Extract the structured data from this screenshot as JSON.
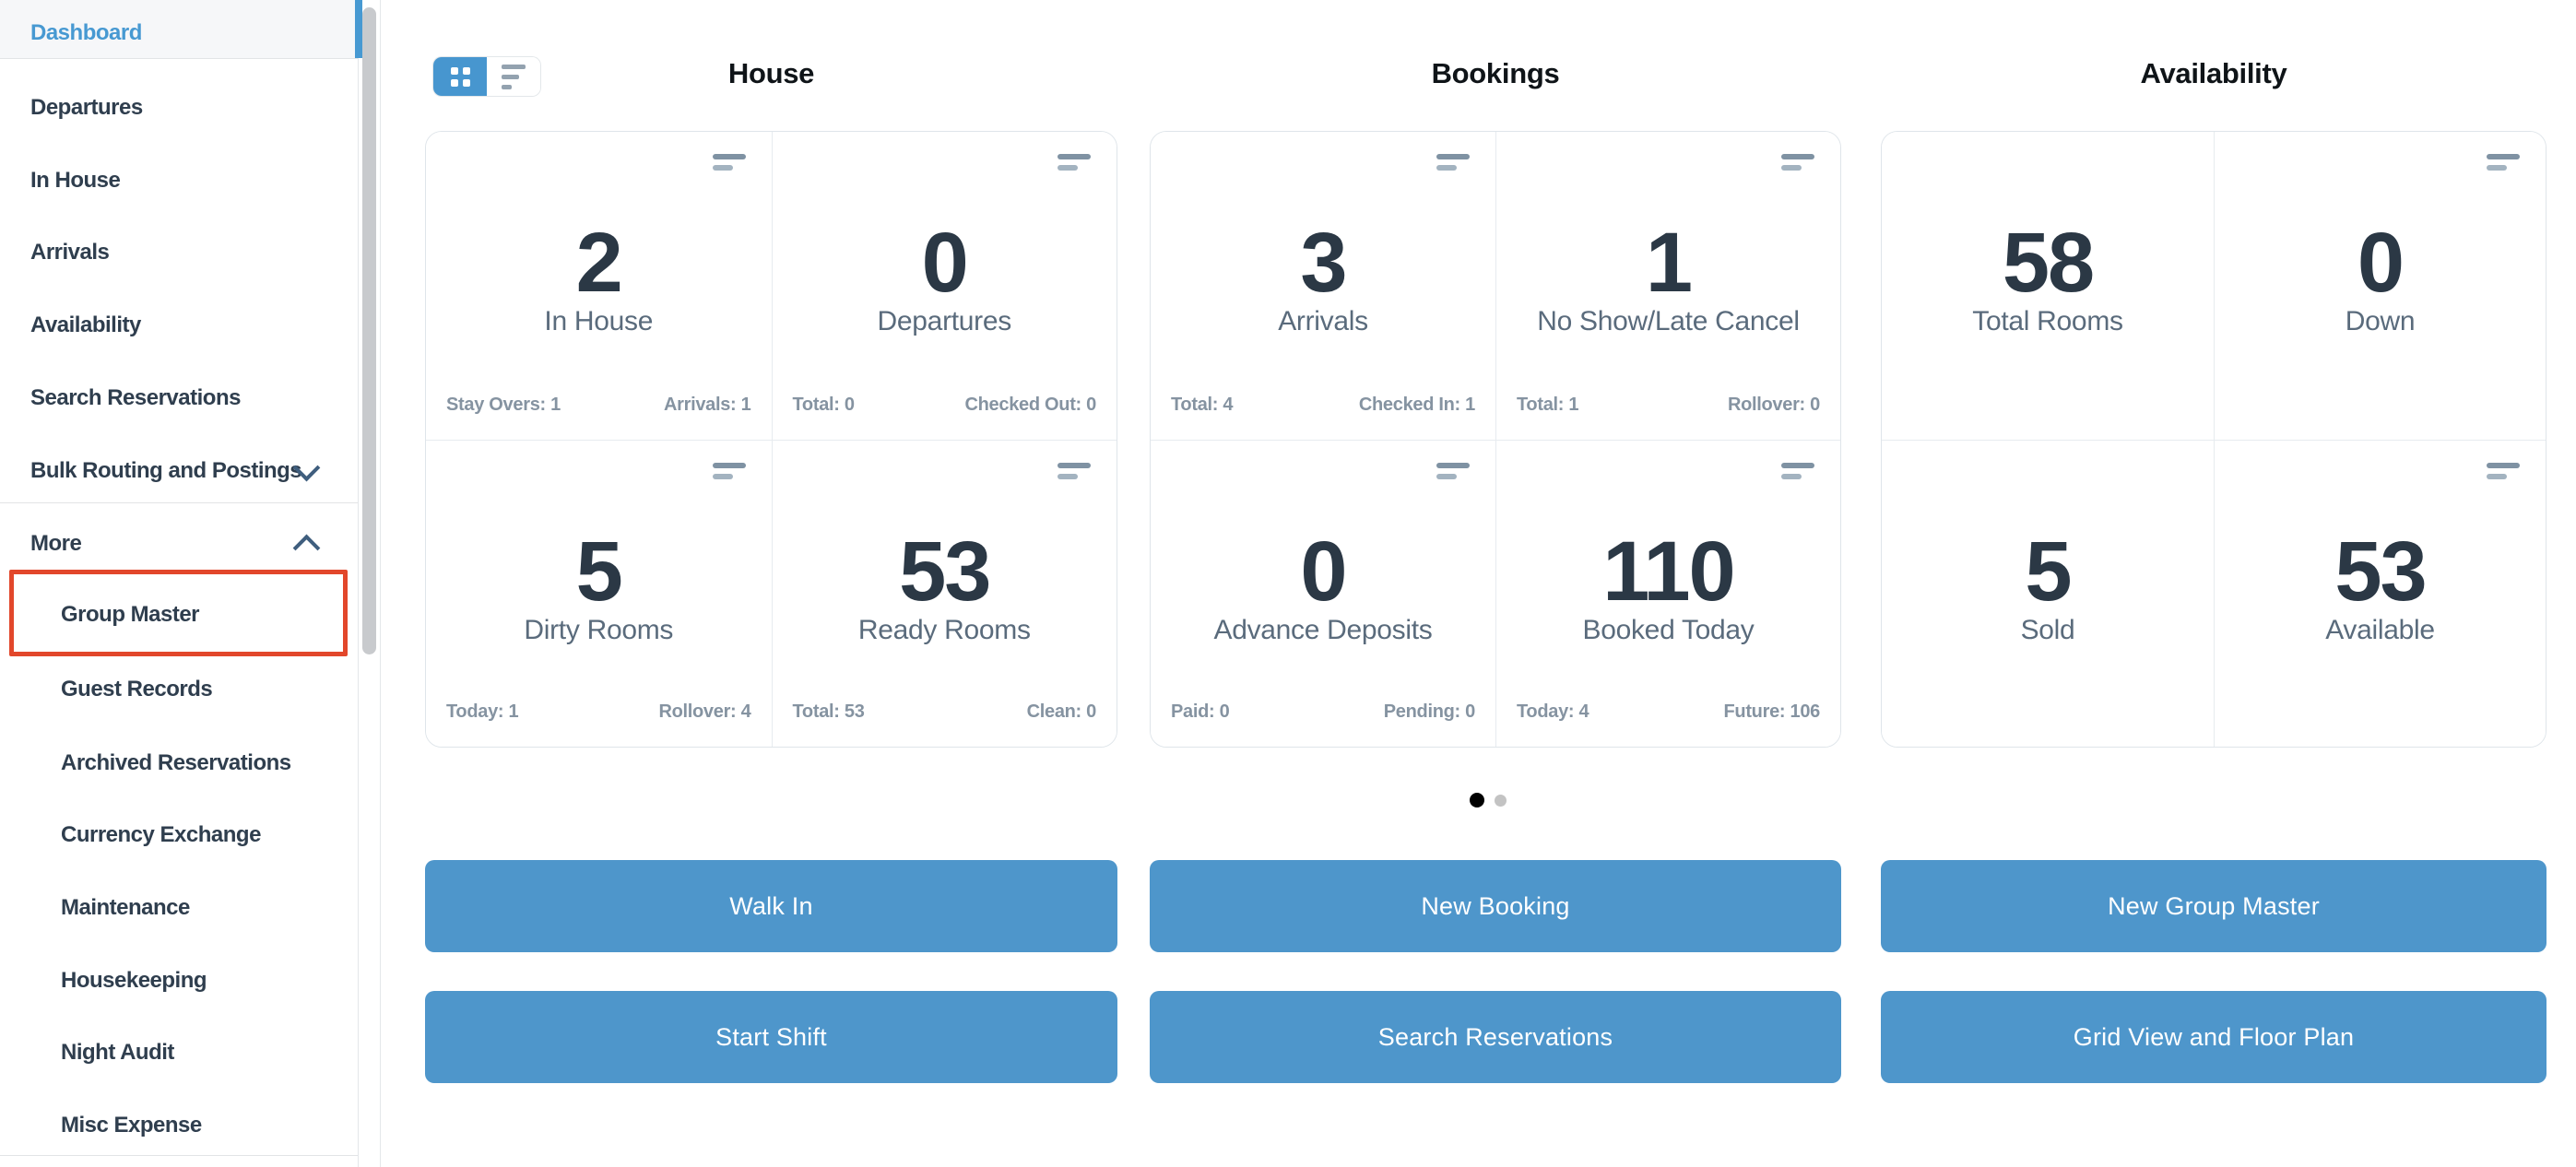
{
  "sidebar": {
    "items": [
      {
        "label": "Dashboard",
        "active": true
      },
      {
        "label": "Departures"
      },
      {
        "label": "In House"
      },
      {
        "label": "Arrivals"
      },
      {
        "label": "Availability"
      },
      {
        "label": "Search Reservations"
      },
      {
        "label": "Bulk Routing and Postings",
        "chevron": "down"
      },
      {
        "label": "More",
        "chevron": "up"
      }
    ],
    "more_items": [
      {
        "label": "Group Master",
        "highlighted": true
      },
      {
        "label": "Guest Records"
      },
      {
        "label": "Archived Reservations"
      },
      {
        "label": "Currency Exchange"
      },
      {
        "label": "Maintenance"
      },
      {
        "label": "Housekeeping"
      },
      {
        "label": "Night Audit"
      },
      {
        "label": "Misc Expense"
      }
    ]
  },
  "view_toggle": {
    "options": [
      "grid-view",
      "list-view"
    ],
    "active": "grid-view"
  },
  "columns": [
    {
      "title": "House",
      "cards": [
        {
          "value": "2",
          "label": "In House",
          "menu_icon": true,
          "stats": [
            {
              "label": "Stay Overs",
              "value": "1"
            },
            {
              "label": "Arrivals",
              "value": "1"
            }
          ]
        },
        {
          "value": "0",
          "label": "Departures",
          "menu_icon": true,
          "stats": [
            {
              "label": "Total",
              "value": "0"
            },
            {
              "label": "Checked Out",
              "value": "0"
            }
          ]
        },
        {
          "value": "5",
          "label": "Dirty Rooms",
          "menu_icon": true,
          "stats": [
            {
              "label": "Today",
              "value": "1"
            },
            {
              "label": "Rollover",
              "value": "4"
            }
          ]
        },
        {
          "value": "53",
          "label": "Ready Rooms",
          "menu_icon": true,
          "stats": [
            {
              "label": "Total",
              "value": "53"
            },
            {
              "label": "Clean",
              "value": "0"
            }
          ]
        }
      ],
      "buttons": [
        "Walk In",
        "Start Shift"
      ]
    },
    {
      "title": "Bookings",
      "cards": [
        {
          "value": "3",
          "label": "Arrivals",
          "menu_icon": true,
          "stats": [
            {
              "label": "Total",
              "value": "4"
            },
            {
              "label": "Checked In",
              "value": "1"
            }
          ]
        },
        {
          "value": "1",
          "label": "No Show/Late Cancel",
          "menu_icon": true,
          "stats": [
            {
              "label": "Total",
              "value": "1"
            },
            {
              "label": "Rollover",
              "value": "0"
            }
          ]
        },
        {
          "value": "0",
          "label": "Advance Deposits",
          "menu_icon": true,
          "stats": [
            {
              "label": "Paid",
              "value": "0"
            },
            {
              "label": "Pending",
              "value": "0"
            }
          ]
        },
        {
          "value": "110",
          "label": "Booked Today",
          "menu_icon": true,
          "stats": [
            {
              "label": "Today",
              "value": "4"
            },
            {
              "label": "Future",
              "value": "106"
            }
          ]
        }
      ],
      "buttons": [
        "New Booking",
        "Search Reservations"
      ]
    },
    {
      "title": "Availability",
      "cards": [
        {
          "value": "58",
          "label": "Total Rooms",
          "menu_icon": false,
          "stats": []
        },
        {
          "value": "0",
          "label": "Down",
          "menu_icon": true,
          "stats": []
        },
        {
          "value": "5",
          "label": "Sold",
          "menu_icon": false,
          "stats": []
        },
        {
          "value": "53",
          "label": "Available",
          "menu_icon": true,
          "stats": []
        }
      ],
      "buttons": [
        "New Group Master",
        "Grid View and Floor Plan"
      ]
    }
  ],
  "pagination": {
    "dot_count": 2,
    "active_index": 0
  },
  "colors": {
    "accent_blue": "#4e96cb",
    "active_nav_blue": "#4799d2",
    "highlight_red": "#e2472b",
    "number_text": "#2b3845",
    "label_text": "#5a6b7c",
    "stats_text": "#8593a1",
    "card_border": "#dfe5ea",
    "dot_active": "#000000",
    "dot_inactive": "#c3c3c3"
  }
}
